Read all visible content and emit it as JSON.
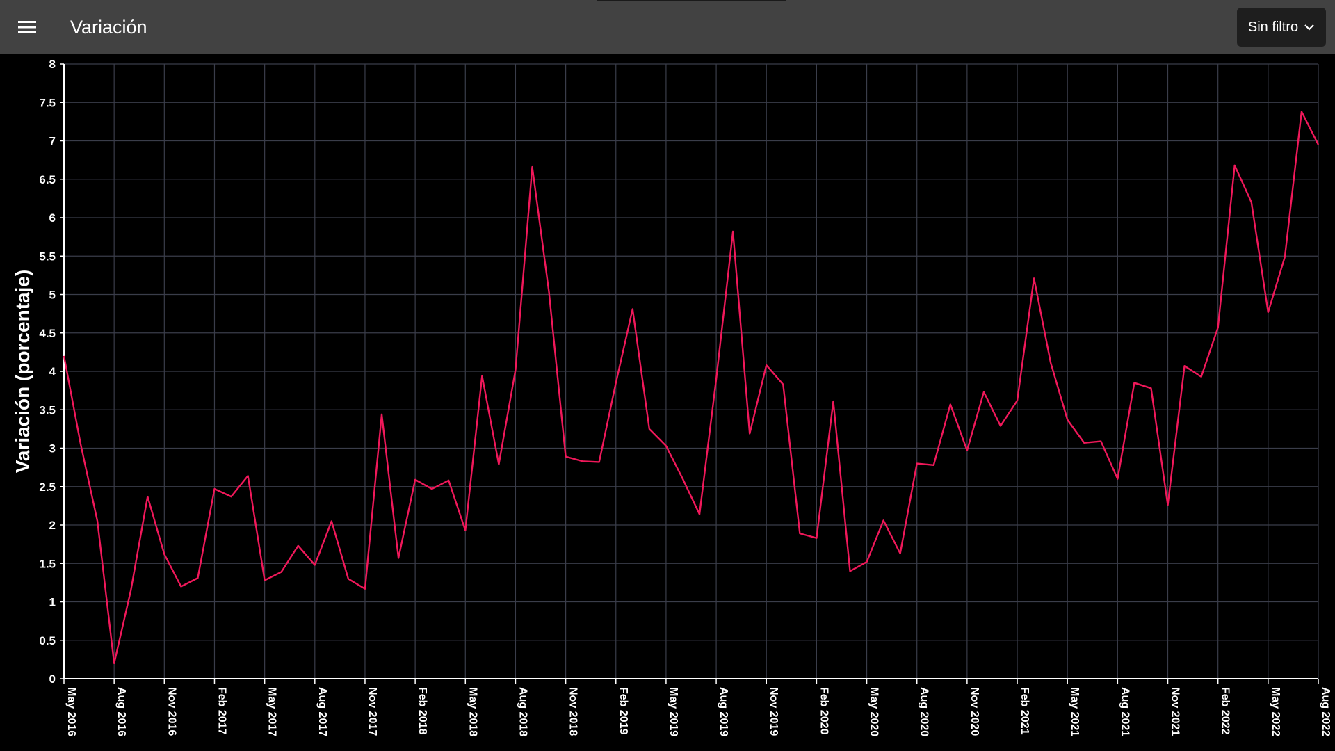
{
  "header": {
    "title": "Variación",
    "menu_icon": "hamburger-menu-icon",
    "filter_label": "Sin filtro",
    "filter_icon": "chevron-down-icon"
  },
  "colors": {
    "appbar": "#424242",
    "background": "#000000",
    "grid": "#3a3d4a",
    "line": "#f0185a",
    "text": "#ffffff"
  },
  "chart_data": {
    "type": "line",
    "title": "",
    "xlabel": "",
    "ylabel": "Variación (porcentaje)",
    "ylim": [
      0,
      8
    ],
    "yticks": [
      "0",
      "0.5",
      "1",
      "1.5",
      "2",
      "2.5",
      "3",
      "3.5",
      "4",
      "4.5",
      "5",
      "5.5",
      "6",
      "6.5",
      "7",
      "7.5",
      "8"
    ],
    "xticks": [
      "May 2016",
      "Aug 2016",
      "Nov 2016",
      "Feb 2017",
      "May 2017",
      "Aug 2017",
      "Nov 2017",
      "Feb 2018",
      "May 2018",
      "Aug 2018",
      "Nov 2018",
      "Feb 2019",
      "May 2019",
      "Aug 2019",
      "Nov 2019",
      "Feb 2020",
      "May 2020",
      "Aug 2020",
      "Nov 2020",
      "Feb 2021",
      "May 2021",
      "Aug 2021",
      "Nov 2021",
      "Feb 2022",
      "May 2022",
      "Aug 2022"
    ],
    "grid": true,
    "legend": "none",
    "start": "2016-05",
    "series": [
      {
        "values": [
          4.2,
          3.05,
          2.05,
          0.2,
          1.15,
          2.37,
          1.62,
          1.2,
          1.31,
          2.47,
          2.37,
          2.64,
          1.28,
          1.39,
          1.73,
          1.48,
          2.05,
          1.3,
          1.17,
          3.44,
          1.57,
          2.59,
          2.47,
          2.58,
          1.93,
          3.94,
          2.79,
          4.02,
          6.66,
          5.03,
          2.89,
          2.83,
          2.82,
          3.85,
          4.81,
          3.25,
          3.03,
          2.6,
          2.14,
          3.9,
          5.82,
          3.19,
          4.08,
          3.83,
          1.89,
          1.83,
          3.61,
          1.4,
          1.52,
          2.06,
          1.63,
          2.8,
          2.78,
          3.57,
          2.97,
          3.73,
          3.29,
          3.62,
          5.21,
          4.11,
          3.37,
          3.07,
          3.09,
          2.6,
          3.85,
          3.78,
          2.26,
          4.07,
          3.93,
          4.57,
          6.68,
          6.2,
          4.77,
          5.49,
          7.38,
          6.95
        ]
      }
    ]
  }
}
